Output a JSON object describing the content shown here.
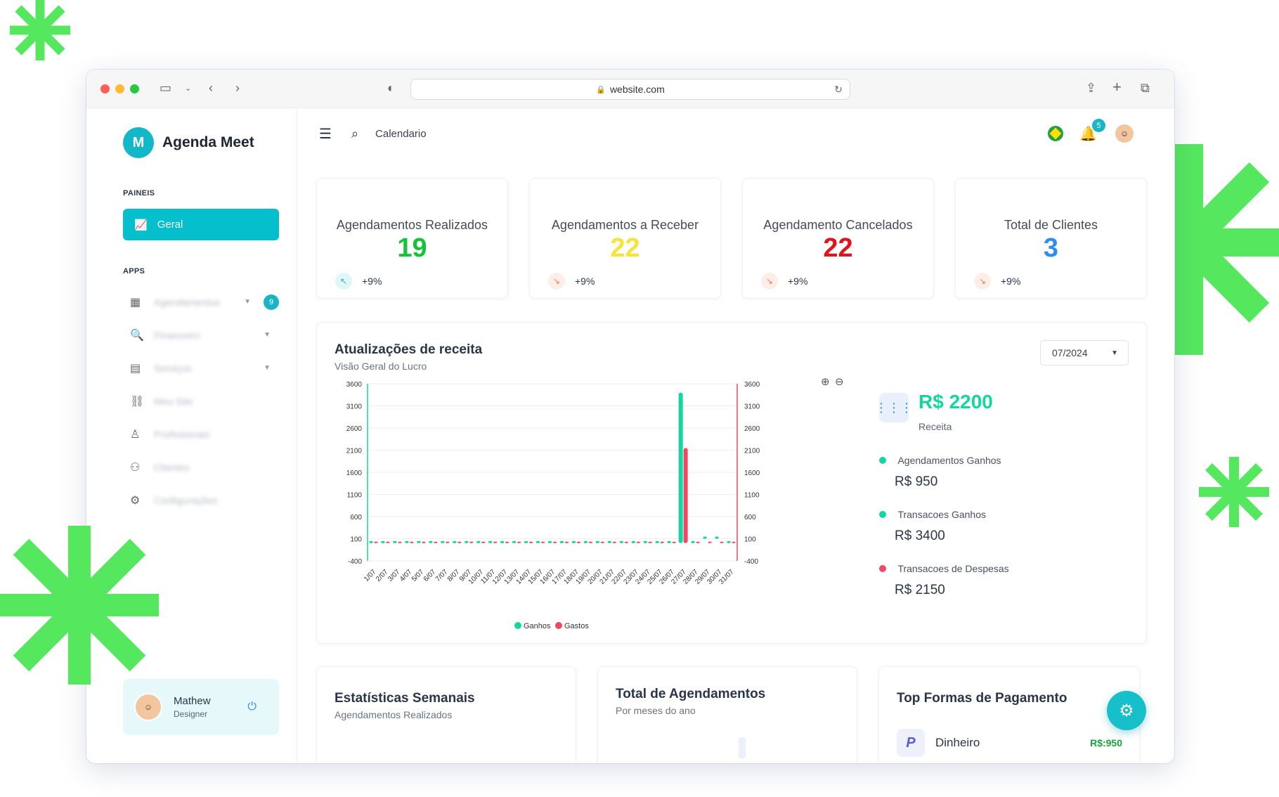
{
  "browser": {
    "url": "website.com"
  },
  "brand": {
    "name": "Agenda Meet",
    "logo_letter": "M"
  },
  "sidebar": {
    "section_paineis": "PAINEIS",
    "active_item": "Geral",
    "section_apps": "APPS",
    "items": [
      {
        "label": "Agendamentos",
        "icon": "calendar-icon"
      },
      {
        "label": "Financeiro",
        "icon": "search-money-icon"
      },
      {
        "label": "Serviços",
        "icon": "briefcase-icon"
      },
      {
        "label": "Meu Site",
        "icon": "link-icon"
      },
      {
        "label": "Profissionais",
        "icon": "user-icon"
      },
      {
        "label": "Clientes",
        "icon": "users-icon"
      },
      {
        "label": "Configurações",
        "icon": "gear-icon"
      }
    ],
    "agendamentos_badge": "9"
  },
  "user": {
    "name": "Mathew",
    "role": "Designer"
  },
  "topbar": {
    "link": "Calendario",
    "notifications_count": "5"
  },
  "stats": [
    {
      "title": "Agendamentos Realizados",
      "value": "19",
      "change": "+9%",
      "color": "#13c43a",
      "trend": "up"
    },
    {
      "title": "Agendamentos a Receber",
      "value": "22",
      "change": "+9%",
      "color": "#f5e43a",
      "trend": "down"
    },
    {
      "title": "Agendamento Cancelados",
      "value": "22",
      "change": "+9%",
      "color": "#e0141e",
      "trend": "down"
    },
    {
      "title": "Total de Clientes",
      "value": "3",
      "change": "+9%",
      "color": "#2f8cf0",
      "trend": "down"
    }
  ],
  "revenue": {
    "title": "Atualizações de receita",
    "subtitle": "Visão Geral do Lucro",
    "period": "07/2024",
    "total": "R$ 2200",
    "total_label": "Receita",
    "breakdown": [
      {
        "label": "Agendamentos Ganhos",
        "value": "R$ 950",
        "color": "#13d6a0"
      },
      {
        "label": "Transacoes Ganhos",
        "value": "R$ 3400",
        "color": "#13d6a0"
      },
      {
        "label": "Transacoes de Despesas",
        "value": "R$ 2150",
        "color": "#f04863"
      }
    ]
  },
  "chart_data": {
    "type": "bar",
    "categories": [
      "1/07",
      "2/07",
      "3/07",
      "4/07",
      "5/07",
      "6/07",
      "7/07",
      "8/07",
      "9/07",
      "10/07",
      "11/07",
      "12/07",
      "13/07",
      "14/07",
      "15/07",
      "16/07",
      "17/07",
      "18/07",
      "19/07",
      "20/07",
      "21/07",
      "22/07",
      "23/07",
      "24/07",
      "25/07",
      "26/07",
      "27/07",
      "28/07",
      "29/07",
      "30/07",
      "31/07"
    ],
    "series": [
      {
        "name": "Ganhos",
        "color": "#13d6a0",
        "values": [
          0,
          0,
          0,
          0,
          0,
          0,
          0,
          0,
          0,
          0,
          0,
          0,
          0,
          0,
          0,
          0,
          0,
          0,
          0,
          0,
          0,
          0,
          0,
          0,
          0,
          0,
          3400,
          0,
          100,
          100,
          0
        ]
      },
      {
        "name": "Gastos",
        "color": "#f04863",
        "values": [
          0,
          0,
          0,
          0,
          0,
          0,
          0,
          0,
          0,
          0,
          0,
          0,
          0,
          0,
          0,
          0,
          0,
          0,
          0,
          0,
          0,
          0,
          0,
          0,
          0,
          0,
          2150,
          0,
          0,
          0,
          0
        ]
      }
    ],
    "yticks": [
      "3600",
      "3100",
      "2600",
      "2100",
      "1600",
      "1100",
      "600",
      "100",
      "-400"
    ],
    "ylim": [
      -400,
      3600
    ],
    "legend": "bottom-center"
  },
  "bottom": {
    "weekly": {
      "title": "Estatísticas Semanais",
      "subtitle": "Agendamentos Realizados"
    },
    "total": {
      "title": "Total de Agendamentos",
      "subtitle": "Por meses do ano"
    },
    "payment": {
      "title": "Top Formas de Pagamento",
      "method": "Dinheiro",
      "amount": "R$:950"
    }
  }
}
